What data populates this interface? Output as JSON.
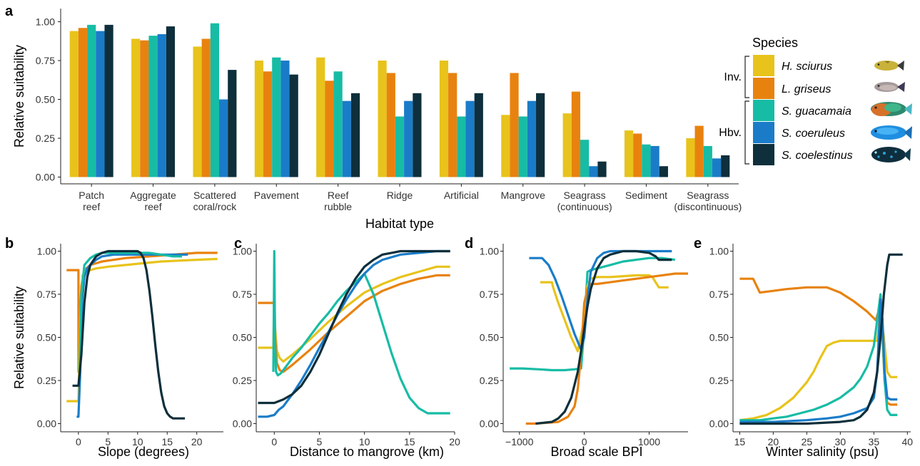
{
  "colors": {
    "H. sciurus": "#E8C31B",
    "L. griseus": "#E8820F",
    "S. guacamaia": "#17BCA5",
    "S. coeruleus": "#1A7CC8",
    "S. coelestinus": "#0E2F3B"
  },
  "panel_labels": [
    "a",
    "b",
    "c",
    "d",
    "e"
  ],
  "legend": {
    "title": "Species",
    "entries": [
      {
        "name": "H. sciurus",
        "fish_icon": "yellow-grunt-fish-icon"
      },
      {
        "name": "L. griseus",
        "fish_icon": "gray-snapper-fish-icon"
      },
      {
        "name": "S. guacamaia",
        "fish_icon": "rainbow-parrotfish-icon"
      },
      {
        "name": "S. coeruleus",
        "fish_icon": "blue-parrotfish-icon"
      },
      {
        "name": "S. coelestinus",
        "fish_icon": "midnight-parrotfish-icon"
      }
    ],
    "groups": [
      {
        "label": "Inv.",
        "members": [
          "H. sciurus",
          "L. griseus"
        ]
      },
      {
        "label": "Hbv.",
        "members": [
          "S. guacamaia",
          "S. coeruleus",
          "S. coelestinus"
        ]
      }
    ]
  },
  "chart_data": [
    {
      "panel": "a",
      "type": "bar",
      "xlabel": "Habitat type",
      "ylabel": "Relative suitability",
      "ylim": [
        0,
        1.05
      ],
      "yticks": [
        "0.00",
        "0.25",
        "0.50",
        "0.75",
        "1.00"
      ],
      "grid": false,
      "categories": [
        "Patch\nreef",
        "Aggregate\nreef",
        "Scattered\ncoral/rock",
        "Pavement",
        "Reef\nrubble",
        "Ridge",
        "Artificial",
        "Mangrove",
        "Seagrass\n(continuous)",
        "Sediment",
        "Seagrass\n(discontinuous)"
      ],
      "series": [
        {
          "name": "H. sciurus",
          "values": [
            0.94,
            0.89,
            0.84,
            0.75,
            0.77,
            0.75,
            0.75,
            0.4,
            0.41,
            0.3,
            0.25
          ]
        },
        {
          "name": "L. griseus",
          "values": [
            0.96,
            0.88,
            0.89,
            0.68,
            0.62,
            0.67,
            0.67,
            0.67,
            0.55,
            0.28,
            0.33
          ]
        },
        {
          "name": "S. guacamaia",
          "values": [
            0.98,
            0.91,
            0.99,
            0.77,
            0.68,
            0.39,
            0.39,
            0.39,
            0.24,
            0.21,
            0.2
          ]
        },
        {
          "name": "S. coeruleus",
          "values": [
            0.94,
            0.92,
            0.5,
            0.75,
            0.49,
            0.49,
            0.49,
            0.49,
            0.07,
            0.2,
            0.12
          ]
        },
        {
          "name": "S. coelestinus",
          "values": [
            0.98,
            0.97,
            0.69,
            0.66,
            0.54,
            0.54,
            0.54,
            0.54,
            0.1,
            0.07,
            0.14
          ]
        }
      ]
    },
    {
      "panel": "b",
      "type": "line",
      "xlabel": "Slope (degrees)",
      "ylabel": "Relative suitability",
      "xlim": [
        -3,
        24.5
      ],
      "ylim": [
        -0.02,
        1.05
      ],
      "xticks": [
        0,
        5,
        10,
        15,
        20
      ],
      "yticks": [
        "0.00",
        "0.25",
        "0.50",
        "0.75",
        "1.00"
      ],
      "series": [
        {
          "name": "L. griseus",
          "x": [
            -2,
            0,
            0,
            0.2,
            0.5,
            1,
            2,
            4,
            6,
            8,
            10,
            12,
            14,
            16,
            18,
            20,
            22,
            23.5
          ],
          "y": [
            0.89,
            0.89,
            0.3,
            0.55,
            0.8,
            0.89,
            0.92,
            0.94,
            0.95,
            0.96,
            0.965,
            0.97,
            0.975,
            0.98,
            0.985,
            0.99,
            0.99,
            0.99
          ]
        },
        {
          "name": "H. sciurus",
          "x": [
            -2,
            0,
            0.3,
            0.7,
            1,
            2,
            3,
            5,
            8,
            11,
            14,
            17,
            20,
            23.5
          ],
          "y": [
            0.13,
            0.13,
            0.6,
            0.86,
            0.88,
            0.89,
            0.9,
            0.91,
            0.92,
            0.93,
            0.94,
            0.945,
            0.95,
            0.955
          ]
        },
        {
          "name": "S. coeruleus",
          "x": [
            -0.3,
            0,
            0.3,
            0.6,
            1,
            1.5,
            2,
            3,
            4,
            6,
            8,
            10,
            12,
            14,
            16,
            18.5
          ],
          "y": [
            0.04,
            0.04,
            0.3,
            0.7,
            0.85,
            0.9,
            0.92,
            0.95,
            0.97,
            0.98,
            0.98,
            0.98,
            0.98,
            0.98,
            0.98,
            0.98
          ]
        },
        {
          "name": "S. guacamaia",
          "x": [
            0.2,
            0.5,
            1,
            2,
            3,
            4,
            6,
            8,
            10,
            12,
            14,
            16,
            17.5
          ],
          "y": [
            0.3,
            0.75,
            0.92,
            0.96,
            0.98,
            0.99,
            0.99,
            0.99,
            0.99,
            0.99,
            0.98,
            0.97,
            0.97
          ]
        },
        {
          "name": "S. coelestinus",
          "x": [
            -1,
            0,
            0.5,
            1,
            1.5,
            2,
            3,
            4,
            5,
            6,
            8,
            10,
            10.5,
            11,
            11.5,
            12,
            12.5,
            13,
            13.5,
            14,
            14.5,
            15,
            15.5,
            16,
            18
          ],
          "y": [
            0.22,
            0.22,
            0.4,
            0.7,
            0.85,
            0.92,
            0.97,
            0.99,
            1.0,
            1.0,
            1.0,
            1.0,
            0.99,
            0.96,
            0.89,
            0.77,
            0.62,
            0.45,
            0.3,
            0.18,
            0.1,
            0.06,
            0.04,
            0.03,
            0.03
          ]
        }
      ]
    },
    {
      "panel": "c",
      "type": "line",
      "xlabel": "Distance to mangrove (km)",
      "xlim": [
        -2,
        20
      ],
      "ylim": [
        -0.02,
        1.05
      ],
      "xticks": [
        0,
        5,
        10,
        15,
        20
      ],
      "xtick_labels": [
        "0",
        "5",
        "10",
        "15",
        "20"
      ],
      "yticks": [
        "0.00",
        "0.25",
        "0.50",
        "0.75",
        "1.00"
      ],
      "series": [
        {
          "name": "H. sciurus",
          "x": [
            -1.8,
            -0.1,
            0,
            0.1,
            0.3,
            0.6,
            1,
            2,
            4,
            6,
            8,
            10,
            12,
            14,
            16,
            18,
            19.5
          ],
          "y": [
            0.44,
            0.44,
            0.75,
            0.55,
            0.42,
            0.38,
            0.36,
            0.4,
            0.49,
            0.59,
            0.68,
            0.76,
            0.81,
            0.85,
            0.88,
            0.91,
            0.91
          ]
        },
        {
          "name": "L. griseus",
          "x": [
            -1.8,
            -0.1,
            0,
            0.1,
            0.3,
            0.6,
            1,
            2,
            4,
            6,
            8,
            10,
            12,
            14,
            16,
            18,
            19.5
          ],
          "y": [
            0.7,
            0.7,
            0.7,
            0.5,
            0.35,
            0.31,
            0.3,
            0.34,
            0.43,
            0.53,
            0.62,
            0.71,
            0.77,
            0.81,
            0.84,
            0.86,
            0.86
          ]
        },
        {
          "name": "S. guacamaia",
          "x": [
            -0.1,
            0,
            0.05,
            0.1,
            0.2,
            0.4,
            0.7,
            1,
            2,
            3,
            4,
            5,
            6,
            7,
            8,
            9,
            10,
            11,
            12,
            13,
            14,
            15,
            16,
            17,
            18,
            19.5
          ],
          "y": [
            0.3,
            1.0,
            0.7,
            0.45,
            0.3,
            0.28,
            0.29,
            0.31,
            0.38,
            0.44,
            0.51,
            0.58,
            0.64,
            0.71,
            0.77,
            0.82,
            0.87,
            0.75,
            0.58,
            0.41,
            0.26,
            0.15,
            0.09,
            0.06,
            0.06,
            0.06
          ]
        },
        {
          "name": "S. coeruleus",
          "x": [
            -1.8,
            -0.8,
            0,
            0.5,
            1,
            2,
            3,
            4,
            5,
            6,
            7,
            8,
            9,
            10,
            11,
            12,
            14,
            16,
            18,
            19.5
          ],
          "y": [
            0.04,
            0.04,
            0.05,
            0.08,
            0.1,
            0.17,
            0.25,
            0.34,
            0.44,
            0.53,
            0.63,
            0.72,
            0.8,
            0.87,
            0.92,
            0.95,
            0.98,
            0.99,
            1.0,
            1.0
          ]
        },
        {
          "name": "S. coelestinus",
          "x": [
            -1.8,
            0,
            1,
            2,
            3,
            4,
            5,
            6,
            7,
            8,
            9,
            10,
            11,
            12,
            13,
            14,
            16,
            18,
            19.5
          ],
          "y": [
            0.12,
            0.12,
            0.14,
            0.17,
            0.22,
            0.3,
            0.4,
            0.52,
            0.64,
            0.75,
            0.84,
            0.91,
            0.95,
            0.98,
            0.99,
            1.0,
            1.0,
            1.0,
            1.0
          ]
        }
      ]
    },
    {
      "panel": "d",
      "type": "line",
      "xlabel": "Broad scale BPI",
      "xlim": [
        -1250,
        1600
      ],
      "ylim": [
        -0.02,
        1.05
      ],
      "xticks": [
        -1000,
        0,
        1000
      ],
      "yticks": [
        "0.00",
        "0.25",
        "0.50",
        "0.75",
        "1.00"
      ],
      "series": [
        {
          "name": "S. guacamaia",
          "x": [
            -1150,
            -950,
            -700,
            -500,
            -300,
            -150,
            -50,
            0,
            50,
            100,
            200,
            400,
            600,
            800,
            1000,
            1200,
            1400
          ],
          "y": [
            0.32,
            0.32,
            0.315,
            0.31,
            0.31,
            0.315,
            0.32,
            0.55,
            0.88,
            0.89,
            0.9,
            0.92,
            0.94,
            0.95,
            0.96,
            0.96,
            0.95
          ]
        },
        {
          "name": "H. sciurus",
          "x": [
            -680,
            -500,
            -480,
            -400,
            -300,
            -200,
            -100,
            0,
            50,
            100,
            200,
            400,
            600,
            800,
            1000,
            1050,
            1100,
            1150,
            1300
          ],
          "y": [
            0.82,
            0.82,
            0.79,
            0.7,
            0.6,
            0.5,
            0.42,
            0.6,
            0.8,
            0.84,
            0.85,
            0.85,
            0.855,
            0.86,
            0.86,
            0.85,
            0.82,
            0.79,
            0.79
          ]
        },
        {
          "name": "L. griseus",
          "x": [
            -900,
            -750,
            -400,
            -250,
            -150,
            -100,
            -50,
            0,
            50,
            100,
            200,
            400,
            600,
            800,
            1000,
            1200,
            1400,
            1600
          ],
          "y": [
            0.0,
            0.0,
            0.01,
            0.04,
            0.1,
            0.2,
            0.4,
            0.7,
            0.78,
            0.81,
            0.81,
            0.82,
            0.83,
            0.84,
            0.85,
            0.86,
            0.87,
            0.87
          ]
        },
        {
          "name": "S. coeruleus",
          "x": [
            -850,
            -650,
            -550,
            -450,
            -350,
            -250,
            -150,
            -50,
            0,
            50,
            100,
            200,
            300,
            400,
            600,
            800,
            1000,
            1350
          ],
          "y": [
            0.96,
            0.96,
            0.92,
            0.84,
            0.74,
            0.63,
            0.52,
            0.43,
            0.5,
            0.72,
            0.88,
            0.96,
            0.99,
            1.0,
            1.0,
            1.0,
            1.0,
            1.0
          ]
        },
        {
          "name": "S. coelestinus",
          "x": [
            -750,
            -500,
            -400,
            -300,
            -200,
            -100,
            -50,
            0,
            50,
            100,
            200,
            300,
            400,
            600,
            800,
            1000,
            1100,
            1150,
            1350
          ],
          "y": [
            0.0,
            0.01,
            0.03,
            0.07,
            0.15,
            0.3,
            0.42,
            0.55,
            0.68,
            0.78,
            0.9,
            0.96,
            0.98,
            1.0,
            1.0,
            0.99,
            0.97,
            0.95,
            0.95
          ]
        }
      ]
    },
    {
      "panel": "e",
      "type": "line",
      "xlabel": "Winter salinity (psu)",
      "xlim": [
        14,
        40.5
      ],
      "ylim": [
        -0.02,
        1.05
      ],
      "xticks": [
        15,
        20,
        25,
        30,
        35,
        40
      ],
      "yticks": [
        "0.00",
        "0.25",
        "0.50",
        "0.75",
        "1.00"
      ],
      "series": [
        {
          "name": "L. griseus",
          "x": [
            15,
            17,
            17.5,
            18,
            20,
            22,
            25,
            28,
            30,
            32,
            34,
            35.3,
            35.7,
            36,
            36.3,
            36.6,
            37,
            37.5,
            38.5
          ],
          "y": [
            0.84,
            0.84,
            0.8,
            0.76,
            0.77,
            0.78,
            0.79,
            0.79,
            0.76,
            0.71,
            0.65,
            0.6,
            0.65,
            0.72,
            0.5,
            0.25,
            0.12,
            0.11,
            0.11
          ]
        },
        {
          "name": "H. sciurus",
          "x": [
            15,
            17,
            19,
            21,
            23,
            25,
            26,
            27,
            28,
            29,
            30,
            32,
            34,
            35.5,
            36,
            36.5,
            37,
            37.5,
            38.5
          ],
          "y": [
            0.02,
            0.03,
            0.05,
            0.09,
            0.15,
            0.24,
            0.3,
            0.38,
            0.45,
            0.47,
            0.48,
            0.48,
            0.48,
            0.48,
            0.65,
            0.5,
            0.3,
            0.27,
            0.27
          ]
        },
        {
          "name": "S. guacamaia",
          "x": [
            15,
            18,
            20,
            22,
            24,
            26,
            28,
            30,
            32,
            33,
            34,
            35,
            35.5,
            36,
            36.3,
            36.6,
            37,
            37.5,
            38.5
          ],
          "y": [
            0.02,
            0.02,
            0.03,
            0.04,
            0.06,
            0.08,
            0.11,
            0.15,
            0.21,
            0.26,
            0.33,
            0.45,
            0.6,
            0.75,
            0.55,
            0.25,
            0.08,
            0.05,
            0.05
          ]
        },
        {
          "name": "S. coeruleus",
          "x": [
            15,
            20,
            25,
            28,
            30,
            32,
            34,
            35,
            35.5,
            36,
            36.3,
            36.6,
            37,
            37.5,
            38.5
          ],
          "y": [
            0.01,
            0.01,
            0.02,
            0.03,
            0.04,
            0.06,
            0.09,
            0.15,
            0.3,
            0.72,
            0.6,
            0.3,
            0.15,
            0.14,
            0.14
          ]
        },
        {
          "name": "S. coelestinus",
          "x": [
            15,
            25,
            30,
            32,
            33,
            34,
            35,
            35.5,
            36,
            36.5,
            37,
            37.3,
            37.6,
            38,
            39.3
          ],
          "y": [
            0.0,
            0.0,
            0.01,
            0.02,
            0.04,
            0.08,
            0.18,
            0.3,
            0.5,
            0.75,
            0.92,
            0.98,
            0.98,
            0.98,
            0.98
          ]
        }
      ]
    }
  ]
}
